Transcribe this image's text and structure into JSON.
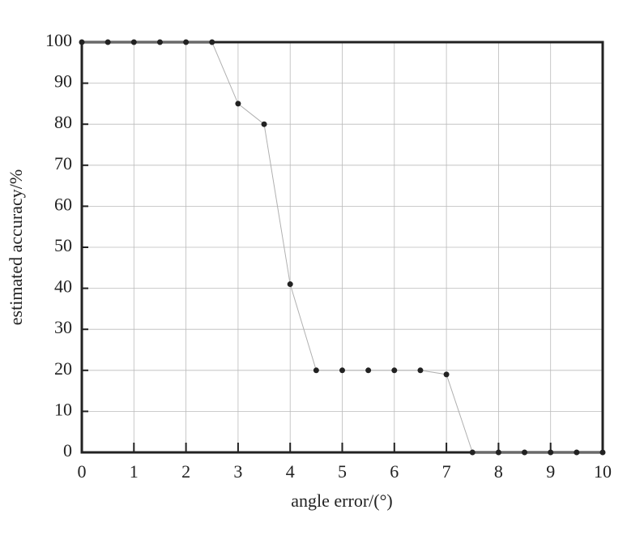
{
  "chart_data": {
    "type": "line",
    "xlabel": "angle error/(°)",
    "ylabel": "estimated accuracy/%",
    "x": [
      0,
      0.5,
      1,
      1.5,
      2,
      2.5,
      3,
      3.5,
      4,
      4.5,
      5,
      5.5,
      6,
      6.5,
      7,
      7.5,
      8,
      8.5,
      9,
      9.5,
      10
    ],
    "values": [
      100,
      100,
      100,
      100,
      100,
      100,
      85,
      80,
      41,
      20,
      20,
      20,
      20,
      20,
      19,
      0,
      0,
      0,
      0,
      0,
      0
    ],
    "line_color": "#b0b0b0",
    "marker_color": "#222222",
    "xlim": [
      0,
      10
    ],
    "xticks": [
      0,
      1,
      2,
      3,
      4,
      5,
      6,
      7,
      8,
      9,
      10
    ],
    "ylim": [
      0,
      100
    ],
    "yticks": [
      0,
      10,
      20,
      30,
      40,
      50,
      60,
      70,
      80,
      90,
      100
    ],
    "grid": true
  }
}
